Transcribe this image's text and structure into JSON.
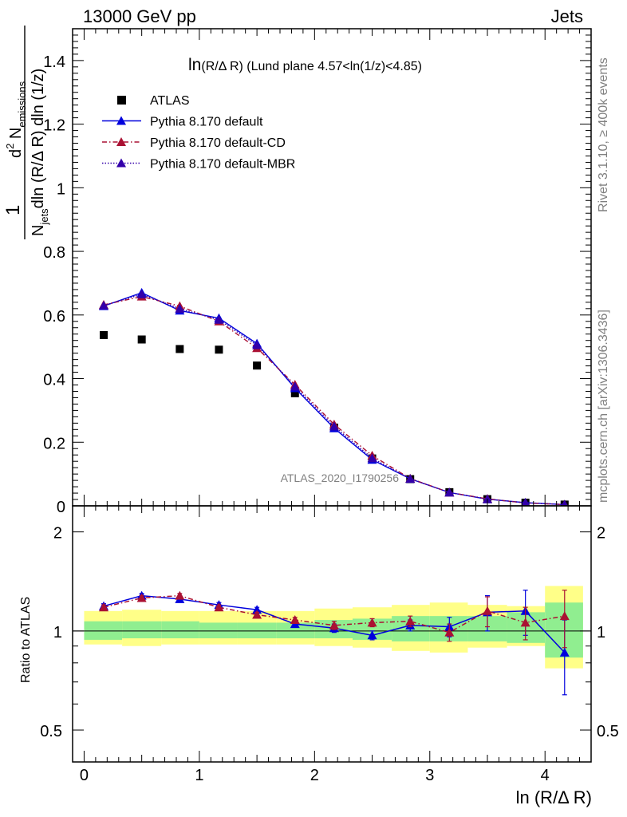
{
  "header": {
    "left": "13000 GeV pp",
    "right": "Jets"
  },
  "side_labels": {
    "rivet": "Rivet 3.1.10, ≥ 400k events",
    "mcplots": "mcplots.cern.ch [arXiv:1306.3436]"
  },
  "watermark": "ATLAS_2020_I1790256",
  "plot_title": {
    "main": "ln",
    "paren": "(R/Δ R)",
    "rest": " (Lund plane 4.57<ln(1/z)<4.85)"
  },
  "y_label": {
    "num_1": "1",
    "num_2": "d",
    "num_sup": "2",
    "num_3": " N",
    "num_sub": "emissions",
    "den_1": "N",
    "den_sub": "jets",
    "den_2": "dln (R/Δ R) dln (1/z)"
  },
  "ratio_ylabel": "Ratio to ATLAS",
  "x_label": "ln (R/Δ R)",
  "legend": [
    {
      "label": "ATLAS",
      "color": "#000000",
      "marker": "square",
      "line": "none"
    },
    {
      "label": "Pythia 8.170 default",
      "color": "#0000dd",
      "marker": "triangle",
      "line": "solid"
    },
    {
      "label": "Pythia 8.170 default-CD",
      "color": "#aa1133",
      "marker": "triangle",
      "line": "dashdot"
    },
    {
      "label": "Pythia 8.170 default-MBR",
      "color": "#3300aa",
      "marker": "triangle",
      "line": "dotted"
    }
  ],
  "chart_data": [
    {
      "type": "scatter",
      "panel": "main",
      "x": [
        0.17,
        0.5,
        0.83,
        1.17,
        1.5,
        1.83,
        2.17,
        2.5,
        2.83,
        3.17,
        3.5,
        3.83,
        4.17
      ],
      "xlim": [
        -0.1,
        4.4
      ],
      "ylim": [
        0,
        1.5
      ],
      "yticks": [
        0,
        0.2,
        0.4,
        0.6,
        0.8,
        1,
        1.2,
        1.4
      ],
      "ytick_labels": [
        "0",
        "0.2",
        "0.4",
        "0.6",
        "0.8",
        "1",
        "1.2",
        "1.4"
      ],
      "xticks": [
        0,
        1,
        2,
        3,
        4
      ],
      "series": [
        {
          "name": "ATLAS",
          "values": [
            0.537,
            0.523,
            0.493,
            0.491,
            0.441,
            0.354,
            0.246,
            0.149,
            0.084,
            0.043,
            0.021,
            0.01,
            0.004
          ]
        },
        {
          "name": "Pythia 8.170 default",
          "values": [
            0.628,
            0.67,
            0.614,
            0.59,
            0.51,
            0.37,
            0.244,
            0.145,
            0.085,
            0.042,
            0.021,
            0.01,
            0.004
          ]
        },
        {
          "name": "Pythia 8.170 default-CD",
          "values": [
            0.632,
            0.658,
            0.628,
            0.58,
            0.496,
            0.381,
            0.256,
            0.158,
            0.086,
            0.042,
            0.022,
            0.009,
            0.004
          ]
        },
        {
          "name": "Pythia 8.170 default-MBR",
          "values": [
            0.63,
            0.665,
            0.62,
            0.585,
            0.505,
            0.375,
            0.25,
            0.15,
            0.085,
            0.042,
            0.021,
            0.01,
            0.004
          ]
        }
      ]
    },
    {
      "type": "line",
      "panel": "ratio",
      "x": [
        0.17,
        0.5,
        0.83,
        1.17,
        1.5,
        1.83,
        2.17,
        2.5,
        2.83,
        3.17,
        3.5,
        3.83,
        4.17
      ],
      "xlim": [
        -0.1,
        4.4
      ],
      "ylim": [
        0.4,
        2.4
      ],
      "log_y": true,
      "yticks": [
        0.5,
        1,
        2
      ],
      "ytick_labels": [
        "0.5",
        "1",
        "2"
      ],
      "xticks": [
        0,
        1,
        2,
        3,
        4
      ],
      "xtick_labels": [
        "0",
        "1",
        "2",
        "3",
        "4"
      ],
      "bins": [
        0,
        0.33,
        0.67,
        1,
        1.33,
        1.67,
        2,
        2.33,
        2.67,
        3,
        3.33,
        3.67,
        4,
        4.33
      ],
      "band_inner": [
        [
          0.94,
          1.07
        ],
        [
          0.95,
          1.07
        ],
        [
          0.95,
          1.07
        ],
        [
          0.95,
          1.06
        ],
        [
          0.95,
          1.06
        ],
        [
          0.95,
          1.06
        ],
        [
          0.95,
          1.08
        ],
        [
          0.94,
          1.09
        ],
        [
          0.93,
          1.11
        ],
        [
          0.93,
          1.11
        ],
        [
          0.93,
          1.11
        ],
        [
          0.92,
          1.14
        ],
        [
          0.83,
          1.22
        ]
      ],
      "band_outer": [
        [
          0.91,
          1.15
        ],
        [
          0.9,
          1.16
        ],
        [
          0.91,
          1.15
        ],
        [
          0.91,
          1.15
        ],
        [
          0.91,
          1.15
        ],
        [
          0.91,
          1.15
        ],
        [
          0.9,
          1.17
        ],
        [
          0.89,
          1.18
        ],
        [
          0.87,
          1.2
        ],
        [
          0.86,
          1.22
        ],
        [
          0.89,
          1.2
        ],
        [
          0.9,
          1.19
        ],
        [
          0.77,
          1.37
        ]
      ],
      "series": [
        {
          "name": "Pythia 8.170 default",
          "values": [
            1.19,
            1.28,
            1.25,
            1.2,
            1.16,
            1.05,
            1.02,
            0.97,
            1.04,
            1.03,
            1.14,
            1.15,
            0.86
          ],
          "err": [
            0.02,
            0.02,
            0.02,
            0.02,
            0.02,
            0.02,
            0.03,
            0.03,
            0.04,
            0.07,
            0.14,
            0.18,
            0.22
          ]
        },
        {
          "name": "Pythia 8.170 default-CD",
          "values": [
            1.18,
            1.26,
            1.28,
            1.18,
            1.12,
            1.08,
            1.04,
            1.06,
            1.07,
            0.99,
            1.15,
            1.06,
            1.11
          ],
          "err": [
            0.02,
            0.02,
            0.02,
            0.02,
            0.02,
            0.02,
            0.03,
            0.03,
            0.04,
            0.06,
            0.12,
            0.12,
            0.22
          ]
        }
      ]
    }
  ]
}
